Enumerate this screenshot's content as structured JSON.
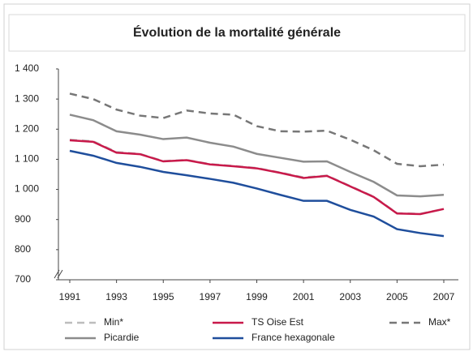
{
  "chart_data": {
    "type": "line",
    "title": "Évolution de la mortalité générale",
    "x": [
      1991,
      1992,
      1993,
      1994,
      1995,
      1996,
      1997,
      1998,
      1999,
      2000,
      2001,
      2002,
      2003,
      2004,
      2005,
      2006,
      2007
    ],
    "xlim": [
      1991,
      2007
    ],
    "xticks": [
      1991,
      1993,
      1995,
      1997,
      1999,
      2001,
      2003,
      2005,
      2007
    ],
    "ylim": [
      700,
      1400
    ],
    "yticks": [
      700,
      800,
      900,
      {
        "value": 1000,
        "label": "1 000"
      },
      {
        "value": 1100,
        "label": "1 100"
      },
      {
        "value": 1200,
        "label": "1 200"
      },
      {
        "value": 1300,
        "label": "1 300"
      },
      {
        "value": 1400,
        "label": "1 400"
      }
    ],
    "series": [
      {
        "name": "Min*",
        "color": "#bdbdbd",
        "style": "dashed",
        "values": [
          1165,
          1160,
          1124,
          1118,
          1094,
          1098,
          1084,
          1078,
          1071,
          1056,
          1040,
          1046,
          1011,
          976,
          921,
          919,
          935
        ]
      },
      {
        "name": "TS Oise Est",
        "color": "#c8194a",
        "style": "solid",
        "values": [
          1163,
          1158,
          1122,
          1117,
          1093,
          1097,
          1083,
          1077,
          1070,
          1055,
          1038,
          1045,
          1010,
          975,
          920,
          918,
          935
        ]
      },
      {
        "name": "Max*",
        "color": "#777777",
        "style": "dashed",
        "values": [
          1318,
          1300,
          1265,
          1245,
          1237,
          1262,
          1252,
          1248,
          1210,
          1193,
          1192,
          1195,
          1165,
          1130,
          1085,
          1077,
          1082
        ]
      },
      {
        "name": "Picardie",
        "color": "#8c8c8c",
        "style": "solid",
        "values": [
          1248,
          1230,
          1193,
          1182,
          1167,
          1172,
          1155,
          1142,
          1118,
          1105,
          1092,
          1093,
          1058,
          1025,
          980,
          977,
          982
        ]
      },
      {
        "name": "France hexagonale",
        "color": "#1f4e9c",
        "style": "solid",
        "values": [
          1128,
          1112,
          1088,
          1075,
          1058,
          1047,
          1035,
          1022,
          1003,
          982,
          962,
          962,
          932,
          910,
          868,
          855,
          845
        ]
      }
    ]
  }
}
